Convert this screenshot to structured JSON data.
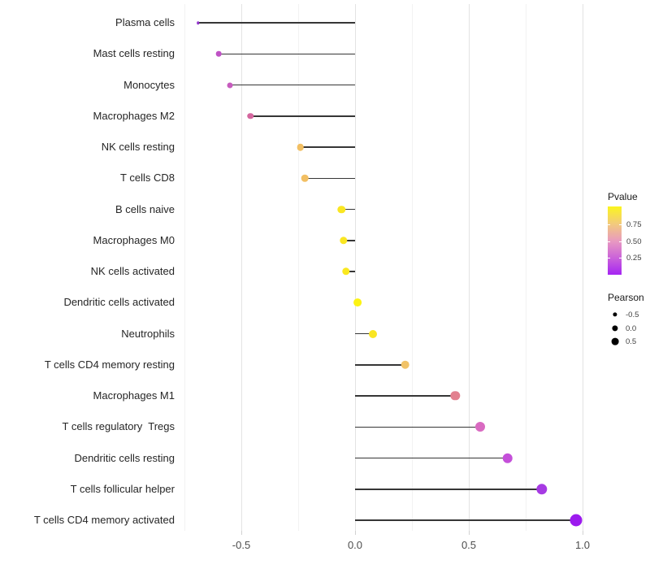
{
  "chart_data": {
    "type": "lollipop",
    "title": "",
    "xlabel": "",
    "ylabel": "",
    "x_axis": {
      "range": [
        -0.77,
        1.05
      ],
      "major_ticks": [
        -0.5,
        0.0,
        0.5,
        1.0
      ],
      "major_tick_labels": [
        "-0.5",
        "0.0",
        "0.5",
        "1.0"
      ],
      "minor_ticks": [
        -0.75,
        -0.25,
        0.25,
        0.75
      ]
    },
    "grid": "on",
    "categories": [
      "Plasma cells",
      "Mast cells resting",
      "Monocytes",
      "Macrophages M2",
      "NK cells resting",
      "T cells CD8",
      "B cells naive",
      "Macrophages M0",
      "NK cells activated",
      "Dendritic cells activated",
      "Neutrophils",
      "T cells CD4 memory resting",
      "Macrophages M1",
      "T cells regulatory  Tregs",
      "Dendritic cells resting",
      "T cells follicular helper",
      "T cells CD4 memory activated"
    ],
    "series": [
      {
        "name": "Pearson",
        "values": [
          -0.69,
          -0.6,
          -0.55,
          -0.46,
          -0.24,
          -0.22,
          -0.06,
          -0.05,
          -0.04,
          0.01,
          0.08,
          0.22,
          0.44,
          0.55,
          0.67,
          0.82,
          0.97
        ]
      }
    ],
    "points": [
      {
        "label": "Plasma cells",
        "pearson": -0.69,
        "color": "#9232CC",
        "size": 3.5
      },
      {
        "label": "Mast cells resting",
        "pearson": -0.6,
        "color": "#BF52C5",
        "size": 6.6
      },
      {
        "label": "Monocytes",
        "pearson": -0.55,
        "color": "#C75CBE",
        "size": 7.0
      },
      {
        "label": "Macrophages M2",
        "pearson": -0.46,
        "color": "#D4669E",
        "size": 7.5
      },
      {
        "label": "NK cells resting",
        "pearson": -0.24,
        "color": "#F2BF63",
        "size": 8.6
      },
      {
        "label": "T cells CD8",
        "pearson": -0.22,
        "color": "#F2BF63",
        "size": 8.6
      },
      {
        "label": "B cells naive",
        "pearson": -0.06,
        "color": "#FAE622",
        "size": 9.4
      },
      {
        "label": "Macrophages M0",
        "pearson": -0.05,
        "color": "#FAE622",
        "size": 9.4
      },
      {
        "label": "NK cells activated",
        "pearson": -0.04,
        "color": "#FAE81F",
        "size": 9.4
      },
      {
        "label": "Dendritic cells activated",
        "pearson": 0.01,
        "color": "#FCF313",
        "size": 9.8
      },
      {
        "label": "Neutrophils",
        "pearson": 0.08,
        "color": "#F9E522",
        "size": 10.0
      },
      {
        "label": "T cells CD4 memory resting",
        "pearson": 0.22,
        "color": "#F1C368",
        "size": 10.6
      },
      {
        "label": "Macrophages M1",
        "pearson": 0.44,
        "color": "#E2808F",
        "size": 11.4
      },
      {
        "label": "T cells regulatory  Tregs",
        "pearson": 0.55,
        "color": "#D96AC1",
        "size": 12.0
      },
      {
        "label": "Dendritic cells resting",
        "pearson": 0.67,
        "color": "#C44FD9",
        "size": 12.6
      },
      {
        "label": "T cells follicular helper",
        "pearson": 0.82,
        "color": "#A63AE3",
        "size": 13.4
      },
      {
        "label": "T cells CD4 memory activated",
        "pearson": 0.97,
        "color": "#9C1AEE",
        "size": 15.0
      }
    ],
    "legends": {
      "pvalue": {
        "title": "Pvalue",
        "position": "right",
        "tick_labels": [
          "0.75",
          "0.50",
          "0.25"
        ],
        "tick_values": [
          0.75,
          0.5,
          0.25
        ],
        "gradient_stops": [
          {
            "color": "#FBF51D",
            "pos": 0
          },
          {
            "color": "#F2C97E",
            "pos": 26
          },
          {
            "color": "#E899C1",
            "pos": 51
          },
          {
            "color": "#CB63D9",
            "pos": 75
          },
          {
            "color": "#A524F2",
            "pos": 100
          }
        ]
      },
      "pearson_size": {
        "title": "Pearson",
        "position": "right",
        "items": [
          {
            "label": "-0.5",
            "size": 5.2
          },
          {
            "label": "0.0",
            "size": 7.2
          },
          {
            "label": "0.5",
            "size": 8.8
          }
        ]
      }
    },
    "colors": {
      "stem": "#363636",
      "grid_major": "#e3e3e3",
      "grid_minor": "#f2f2f2",
      "axis_text": "#4d4d4d",
      "label_text": "#262626"
    }
  }
}
